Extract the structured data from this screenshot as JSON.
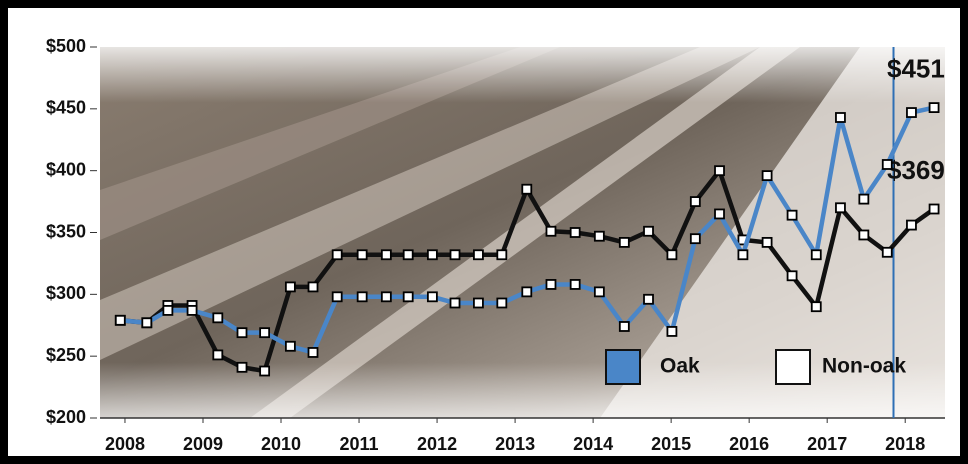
{
  "chart_data": {
    "type": "line",
    "x": [
      2007.94,
      2008.28,
      2008.55,
      2008.86,
      2009.19,
      2009.5,
      2009.79,
      2010.12,
      2010.41,
      2010.72,
      2011.04,
      2011.35,
      2011.63,
      2011.94,
      2012.23,
      2012.53,
      2012.83,
      2013.15,
      2013.46,
      2013.77,
      2014.08,
      2014.4,
      2014.71,
      2015.01,
      2015.31,
      2015.62,
      2015.92,
      2016.23,
      2016.55,
      2016.86,
      2017.17,
      2017.47,
      2017.77,
      2018.08,
      2018.37
    ],
    "series": [
      {
        "name": "Oak",
        "color": "#4a86c8",
        "values": [
          279,
          277,
          287,
          287,
          281,
          269,
          269,
          258,
          253,
          298,
          298,
          298,
          298,
          298,
          293,
          293,
          293,
          302,
          308,
          308,
          302,
          274,
          296,
          270,
          345,
          365,
          332,
          396,
          364,
          332,
          443,
          377,
          405,
          447,
          451
        ],
        "value_labels": [
          null,
          null,
          null,
          null,
          null,
          null,
          null,
          null,
          null,
          null,
          null,
          null,
          null,
          null,
          null,
          null,
          null,
          null,
          null,
          null,
          null,
          null,
          null,
          null,
          null,
          null,
          null,
          null,
          null,
          null,
          null,
          null,
          null,
          null,
          "$451"
        ]
      },
      {
        "name": "Non-oak",
        "color": "#111111",
        "values": [
          279,
          277,
          291,
          291,
          251,
          241,
          238,
          306,
          306,
          332,
          332,
          332,
          332,
          332,
          332,
          332,
          332,
          385,
          351,
          350,
          347,
          342,
          351,
          332,
          375,
          400,
          344,
          342,
          315,
          290,
          370,
          348,
          334,
          356,
          369
        ],
        "value_labels": [
          null,
          null,
          null,
          null,
          null,
          null,
          null,
          null,
          null,
          null,
          null,
          null,
          null,
          null,
          null,
          null,
          null,
          null,
          null,
          null,
          null,
          null,
          null,
          null,
          null,
          null,
          null,
          null,
          null,
          null,
          null,
          null,
          null,
          null,
          "$369"
        ]
      }
    ],
    "xlim": [
      2007.68,
      2018.51
    ],
    "xticks": [
      2008,
      2009,
      2010,
      2011,
      2012,
      2013,
      2014,
      2015,
      2016,
      2017,
      2018
    ],
    "ylim": [
      200,
      500
    ],
    "yticks": [
      {
        "value": 200,
        "label": "$200"
      },
      {
        "value": 250,
        "label": "$250"
      },
      {
        "value": 300,
        "label": "$300"
      },
      {
        "value": 350,
        "label": "$350"
      },
      {
        "value": 400,
        "label": "$400"
      },
      {
        "value": 450,
        "label": "$450"
      },
      {
        "value": 500,
        "label": "$500"
      }
    ],
    "grid": false,
    "legend": "lower right",
    "reference_line": {
      "x": 2017.85,
      "color": "#2e6fb5"
    }
  }
}
